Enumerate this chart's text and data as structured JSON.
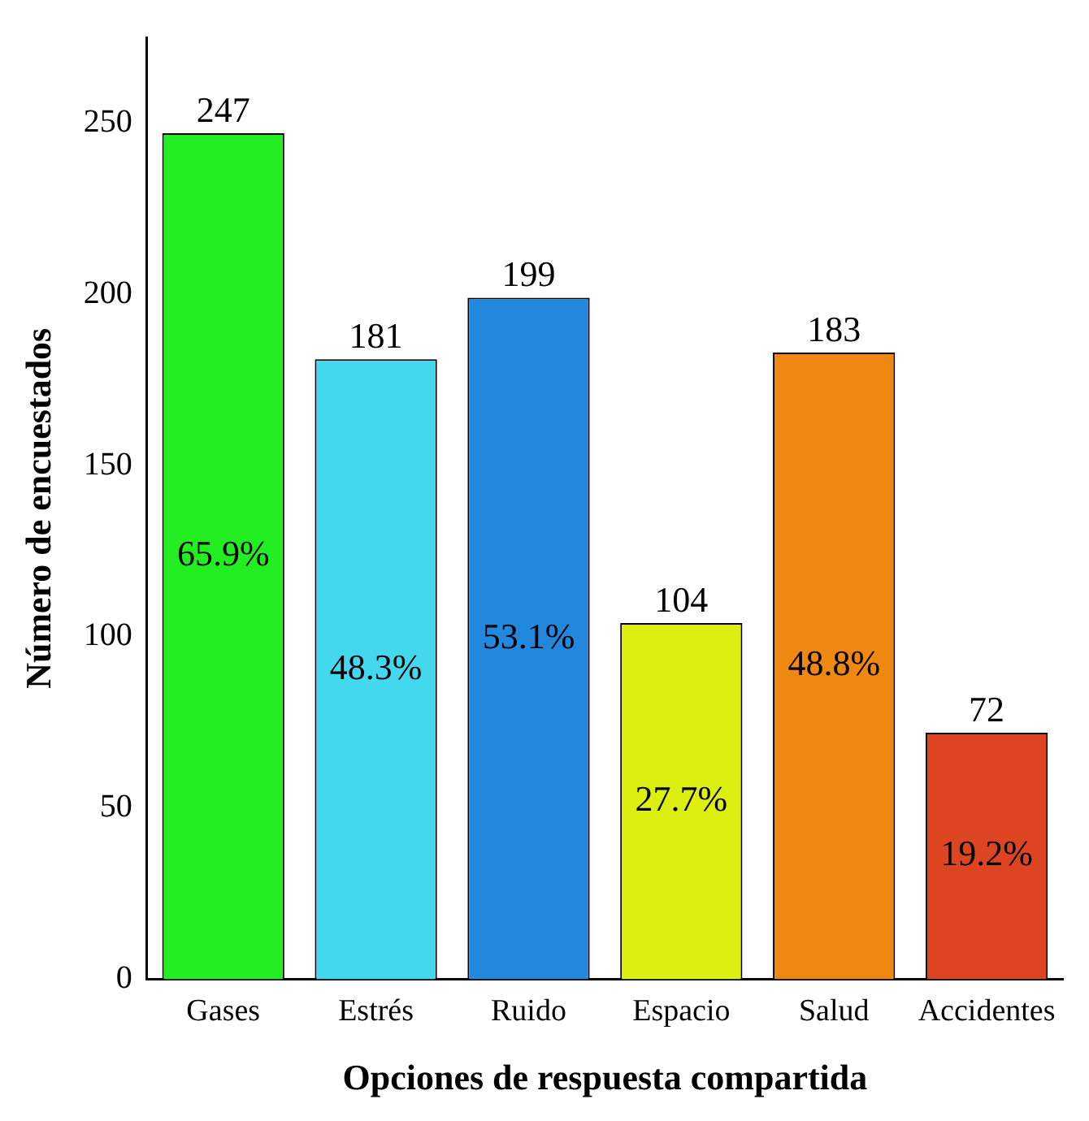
{
  "chart_data": {
    "type": "bar",
    "xlabel": "Opciones de respuesta compartida",
    "ylabel": "Número de encuestados",
    "categories": [
      "Gases",
      "Estrés",
      "Ruido",
      "Espacio",
      "Salud",
      "Accidentes"
    ],
    "values": [
      247,
      181,
      199,
      104,
      183,
      72
    ],
    "colors": [
      "#22ee22",
      "#44d8ee",
      "#2288dd",
      "#ddee11",
      "#ee8811",
      "#dd4422"
    ],
    "ylim": [
      0,
      275
    ],
    "yticks": [
      0,
      50,
      100,
      150,
      200,
      250
    ],
    "grid": false,
    "data_labels": true,
    "annotations": [
      "65.9%",
      "48.3%",
      "53.1%",
      "27.7%",
      "48.8%",
      "19.2%"
    ]
  }
}
